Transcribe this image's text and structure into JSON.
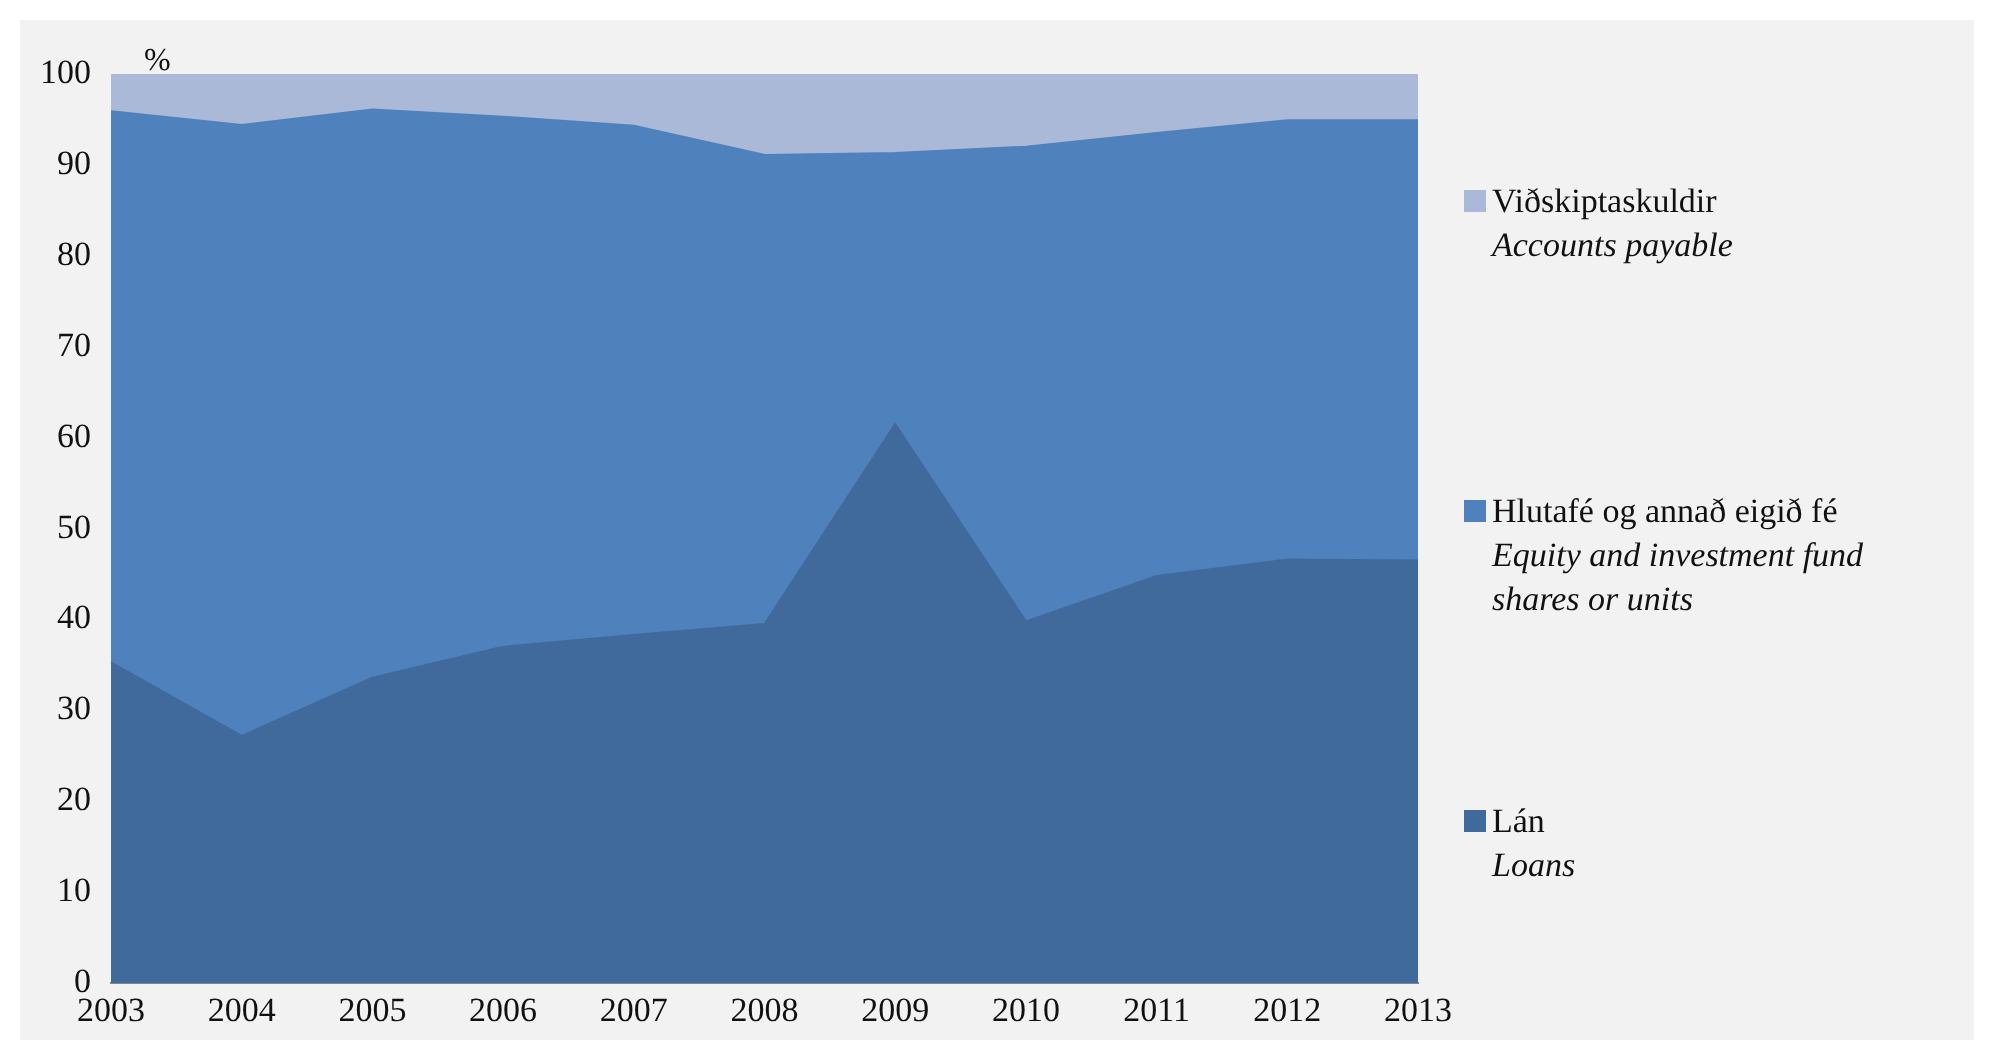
{
  "chart_data": {
    "type": "area",
    "ylabel": "%",
    "categories": [
      "2003",
      "2004",
      "2005",
      "2006",
      "2007",
      "2008",
      "2009",
      "2010",
      "2011",
      "2012",
      "2013"
    ],
    "stacked": true,
    "series": [
      {
        "name": "Lán\nLoans",
        "color": "#406a9c",
        "values": [
          35.3,
          27.2,
          33.6,
          37.0,
          38.3,
          39.5,
          61.5,
          39.8,
          44.8,
          46.6,
          46.5
        ]
      },
      {
        "name": "Hlutafé og annað eigið fé\nEquity and investment fund shares or units",
        "color": "#4f81bd",
        "values": [
          60.6,
          67.2,
          62.5,
          58.3,
          56.0,
          51.6,
          29.8,
          52.2,
          48.7,
          48.3,
          48.4
        ]
      },
      {
        "name": "Viðskiptaskuldir\nAccounts payable",
        "color": "#aab9d8",
        "values": [
          4.1,
          5.6,
          3.9,
          4.7,
          5.7,
          8.9,
          8.7,
          8.0,
          6.5,
          5.1,
          5.1
        ]
      }
    ],
    "ylim": [
      0,
      100
    ],
    "yticks": [
      0,
      10,
      20,
      30,
      40,
      50,
      60,
      70,
      80,
      90,
      100
    ],
    "grid": false,
    "legend": "right"
  }
}
